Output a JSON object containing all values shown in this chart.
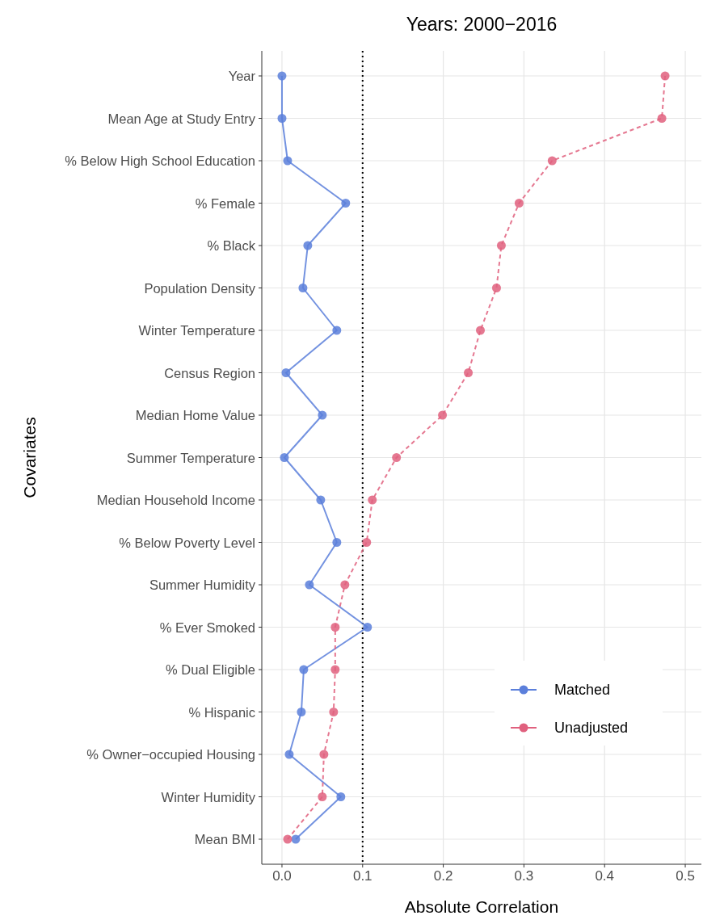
{
  "chart_data": {
    "type": "line",
    "orientation": "horizontal",
    "title": "Years: 2000−2016",
    "xlabel": "Absolute Correlation",
    "ylabel": "Covariates",
    "categories": [
      "Year",
      "Mean Age at Study Entry",
      "% Below High School Education",
      "% Female",
      "% Black",
      "Population Density",
      "Winter Temperature",
      "Census Region",
      "Median Home Value",
      "Summer Temperature",
      "Median Household Income",
      "% Below Poverty Level",
      "Summer Humidity",
      "% Ever Smoked",
      "% Dual Eligible",
      "% Hispanic",
      "% Owner−occupied Housing",
      "Winter Humidity",
      "Mean BMI"
    ],
    "series": [
      {
        "name": "Matched",
        "color": "#5b7fdb",
        "line_style": "solid",
        "values": [
          0,
          0,
          0.007,
          0.079,
          0.032,
          0.026,
          0.068,
          0.005,
          0.05,
          0.003,
          0.048,
          0.068,
          0.034,
          0.106,
          0.027,
          0.024,
          0.009,
          0.073,
          0.017
        ]
      },
      {
        "name": "Unadjusted",
        "color": "#e0607e",
        "line_style": "dashed",
        "values": [
          0.475,
          0.471,
          0.335,
          0.294,
          0.272,
          0.266,
          0.246,
          0.231,
          0.199,
          0.142,
          0.112,
          0.105,
          0.078,
          0.066,
          0.066,
          0.064,
          0.052,
          0.05,
          0.007
        ]
      }
    ],
    "xlim": [
      -0.025,
      0.52
    ],
    "xticks": [
      {
        "value": 0,
        "label": "0.0"
      },
      0.1,
      0.2,
      0.3,
      0.4,
      0.5
    ],
    "ref_lines": [
      {
        "axis": "x",
        "value": 0.1,
        "line_style": "dotted",
        "color": "#000000"
      }
    ],
    "grid": true,
    "legend": "bottom right",
    "marker": "circle"
  }
}
